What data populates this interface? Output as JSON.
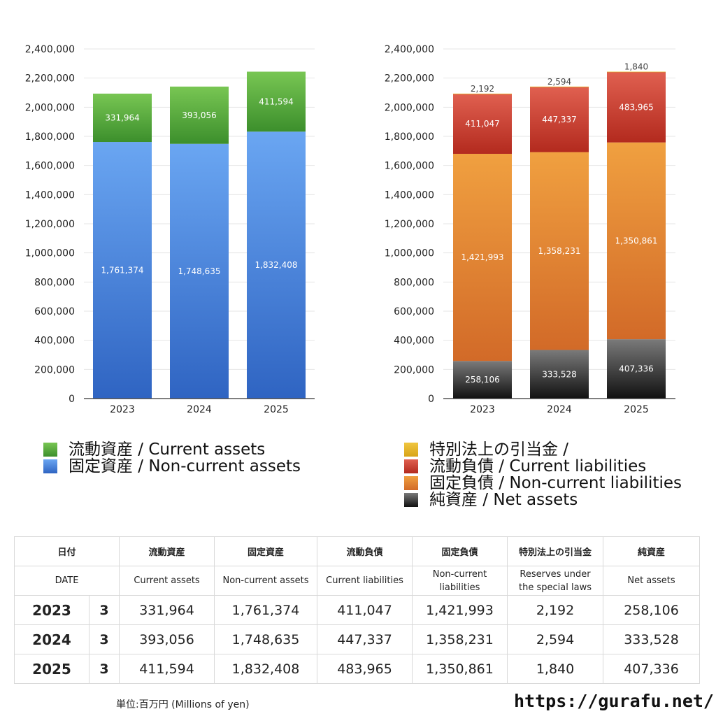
{
  "chart_data": [
    {
      "type": "bar",
      "stacked": true,
      "categories": [
        "2023",
        "2024",
        "2025"
      ],
      "ylim": [
        0,
        2400000
      ],
      "yticks": [
        "0",
        "200,000",
        "400,000",
        "600,000",
        "800,000",
        "1,000,000",
        "1,200,000",
        "1,400,000",
        "1,600,000",
        "1,800,000",
        "2,000,000",
        "2,200,000",
        "2,400,000"
      ],
      "grid": true,
      "series": [
        {
          "name": "固定資産 / Non-current assets",
          "values": [
            1761374,
            1748635,
            1832408
          ],
          "labels": [
            "1,761,374",
            "1,748,635",
            "1,832,408"
          ],
          "color_top": "#6aa6f2",
          "color_bottom": "#2f64c2"
        },
        {
          "name": "流動資産 / Current assets",
          "values": [
            331964,
            393056,
            411594
          ],
          "labels": [
            "331,964",
            "393,056",
            "411,594"
          ],
          "color_top": "#78c653",
          "color_bottom": "#3c8f2c"
        }
      ]
    },
    {
      "type": "bar",
      "stacked": true,
      "categories": [
        "2023",
        "2024",
        "2025"
      ],
      "ylim": [
        0,
        2400000
      ],
      "yticks": [
        "0",
        "200,000",
        "400,000",
        "600,000",
        "800,000",
        "1,000,000",
        "1,200,000",
        "1,400,000",
        "1,600,000",
        "1,800,000",
        "2,000,000",
        "2,200,000",
        "2,400,000"
      ],
      "grid": true,
      "series": [
        {
          "name": "純資産 / Net assets",
          "values": [
            258106,
            333528,
            407336
          ],
          "labels": [
            "258,106",
            "333,528",
            "407,336"
          ],
          "color_top": "#7a7a7a",
          "color_bottom": "#111111"
        },
        {
          "name": "固定負債 / Non-current liabilities",
          "values": [
            1421993,
            1358231,
            1350861
          ],
          "labels": [
            "1,421,993",
            "1,358,231",
            "1,350,861"
          ],
          "color_top": "#f0a040",
          "color_bottom": "#d26a28"
        },
        {
          "name": "流動負債 / Current liabilities",
          "values": [
            411047,
            447337,
            483965
          ],
          "labels": [
            "411,047",
            "447,337",
            "483,965"
          ],
          "color_top": "#e06050",
          "color_bottom": "#b32a1e"
        },
        {
          "name": "特別法上の引当金 /",
          "values": [
            2192,
            2594,
            1840
          ],
          "labels": [
            "2,192",
            "2,594",
            "1,840"
          ],
          "color_top": "#f0c640",
          "color_bottom": "#d8a418"
        }
      ]
    }
  ],
  "legend_left": [
    {
      "label": "流動資産 / Current assets",
      "color": "#4fa33a"
    },
    {
      "label": "固定資産 / Non-current assets",
      "color": "#3f7fd8"
    }
  ],
  "legend_right": [
    {
      "label": "特別法上の引当金 /",
      "color": "#e3b530"
    },
    {
      "label": "流動負債 / Current liabilities",
      "color": "#c8392b"
    },
    {
      "label": "固定負債 / Non-current liabilities",
      "color": "#e0812f"
    },
    {
      "label": "純資産 / Net assets",
      "color": "#2a2a2a"
    }
  ],
  "table": {
    "header_jp": [
      "日付",
      "流動資産",
      "固定資産",
      "流動負債",
      "固定負債",
      "特別法上の引当金",
      "純資産"
    ],
    "header_en": [
      "DATE",
      "Current assets",
      "Non-current assets",
      "Current liabilities",
      "Non-current liabilities",
      "Reserves under the special laws",
      "Net assets"
    ],
    "rows": [
      {
        "year": "2023",
        "month": "3",
        "values": [
          "331,964",
          "1,761,374",
          "411,047",
          "1,421,993",
          "2,192",
          "258,106"
        ]
      },
      {
        "year": "2024",
        "month": "3",
        "values": [
          "393,056",
          "1,748,635",
          "447,337",
          "1,358,231",
          "2,594",
          "333,528"
        ]
      },
      {
        "year": "2025",
        "month": "3",
        "values": [
          "411,594",
          "1,832,408",
          "483,965",
          "1,350,861",
          "1,840",
          "407,336"
        ]
      }
    ]
  },
  "footnote": "単位:百万円 (Millions of yen)",
  "site": "https://gurafu.net/"
}
